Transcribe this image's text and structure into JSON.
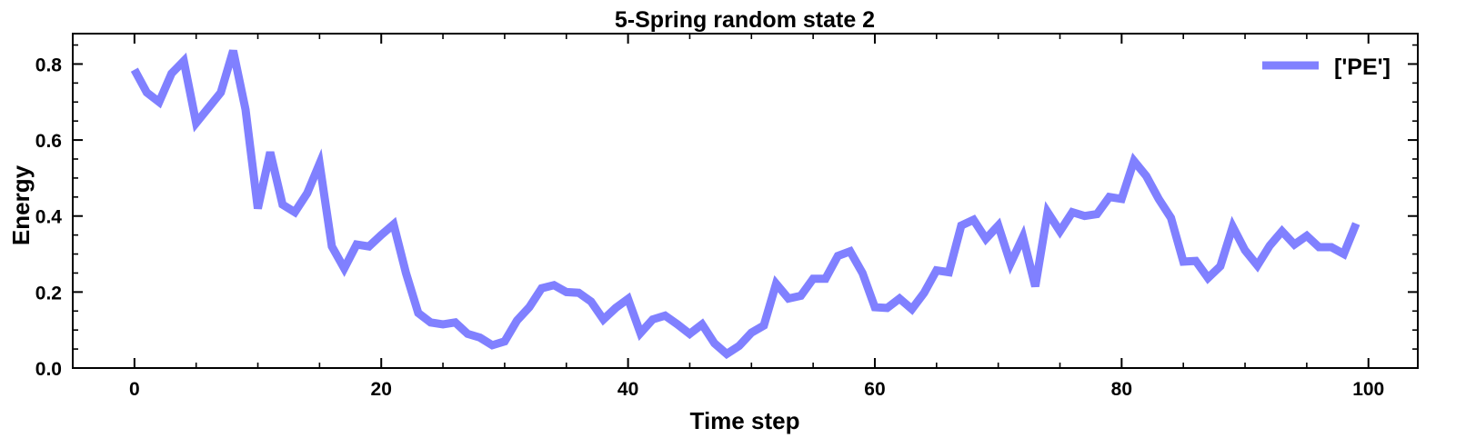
{
  "chart_data": {
    "type": "line",
    "title": "5-Spring random state 2",
    "xlabel": "Time step",
    "ylabel": "Energy",
    "xlim": [
      -5,
      104
    ],
    "ylim": [
      0,
      0.88
    ],
    "xticks": [
      0,
      20,
      40,
      60,
      80,
      100
    ],
    "yticks": [
      0.0,
      0.2,
      0.4,
      0.6,
      0.8
    ],
    "xtick_labels": [
      "0",
      "20",
      "40",
      "60",
      "80",
      "100"
    ],
    "ytick_labels": [
      "0.0",
      "0.2",
      "0.4",
      "0.6",
      "0.8"
    ],
    "grid": false,
    "legend_position": "top-right",
    "series": [
      {
        "name": "['PE']",
        "color": "#8080ff",
        "x": [
          0,
          1,
          2,
          3,
          4,
          5,
          6,
          7,
          8,
          9,
          10,
          11,
          12,
          13,
          14,
          15,
          16,
          17,
          18,
          19,
          20,
          21,
          22,
          23,
          24,
          25,
          26,
          27,
          28,
          29,
          30,
          31,
          32,
          33,
          34,
          35,
          36,
          37,
          38,
          39,
          40,
          41,
          42,
          43,
          44,
          45,
          46,
          47,
          48,
          49,
          50,
          51,
          52,
          53,
          54,
          55,
          56,
          57,
          58,
          59,
          60,
          61,
          62,
          63,
          64,
          65,
          66,
          67,
          68,
          69,
          70,
          71,
          72,
          73,
          74,
          75,
          76,
          77,
          78,
          79,
          80,
          81,
          82,
          83,
          84,
          85,
          86,
          87,
          88,
          89,
          90,
          91,
          92,
          93,
          94,
          95,
          96,
          97,
          98,
          99
        ],
        "values": [
          0.785,
          0.725,
          0.7,
          0.775,
          0.808,
          0.645,
          0.685,
          0.725,
          0.835,
          0.68,
          0.42,
          0.568,
          0.43,
          0.41,
          0.46,
          0.538,
          0.32,
          0.262,
          0.325,
          0.32,
          0.35,
          0.378,
          0.25,
          0.145,
          0.12,
          0.115,
          0.12,
          0.09,
          0.08,
          0.06,
          0.07,
          0.125,
          0.16,
          0.21,
          0.218,
          0.2,
          0.198,
          0.175,
          0.128,
          0.158,
          0.182,
          0.092,
          0.128,
          0.138,
          0.115,
          0.09,
          0.115,
          0.065,
          0.037,
          0.058,
          0.093,
          0.112,
          0.222,
          0.183,
          0.19,
          0.235,
          0.235,
          0.295,
          0.307,
          0.25,
          0.16,
          0.158,
          0.183,
          0.155,
          0.198,
          0.257,
          0.252,
          0.375,
          0.39,
          0.34,
          0.375,
          0.275,
          0.345,
          0.215,
          0.41,
          0.36,
          0.41,
          0.4,
          0.405,
          0.45,
          0.445,
          0.545,
          0.505,
          0.445,
          0.395,
          0.28,
          0.282,
          0.237,
          0.268,
          0.372,
          0.31,
          0.27,
          0.322,
          0.36,
          0.325,
          0.348,
          0.318,
          0.318,
          0.3,
          0.38
        ]
      }
    ]
  }
}
